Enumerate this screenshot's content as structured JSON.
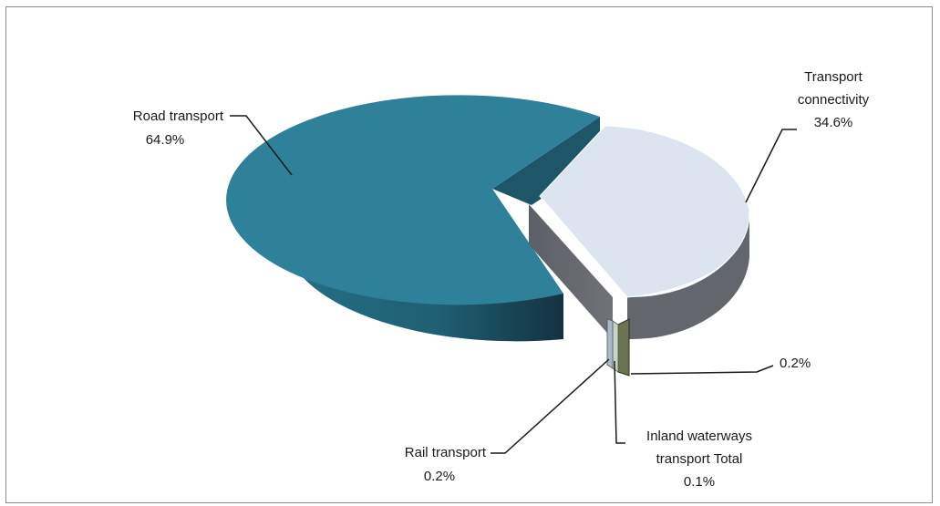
{
  "chart_data": {
    "type": "pie",
    "title": "",
    "series": [
      {
        "name": "Road transport",
        "value": 64.9,
        "label": "64.9%",
        "color": "#2f8199",
        "exploded": false
      },
      {
        "name": "Transport connectivity",
        "value": 34.6,
        "label": "34.6%",
        "color": "#dce4ef",
        "exploded": true
      },
      {
        "name": "",
        "value": 0.2,
        "label": "0.2%",
        "color": "#6b7350",
        "exploded": true
      },
      {
        "name": "Inland waterways transport Total",
        "value": 0.1,
        "label": "0.1%",
        "color": "#c9d3c4",
        "exploded": true
      },
      {
        "name": "Rail transport",
        "value": 0.2,
        "label": "0.2%",
        "color": "#9fb3c2",
        "exploded": true
      }
    ],
    "labels": {
      "road": [
        "Road transport",
        "64.9%"
      ],
      "connectivity": [
        "Transport",
        "connectivity",
        "34.6%"
      ],
      "unnamed": [
        "0.2%"
      ],
      "waterways": [
        "Inland waterways",
        "transport Total",
        "0.1%"
      ],
      "rail": [
        "Rail transport",
        "0.2%"
      ]
    },
    "legend": "none",
    "style": "3d-exploded"
  }
}
